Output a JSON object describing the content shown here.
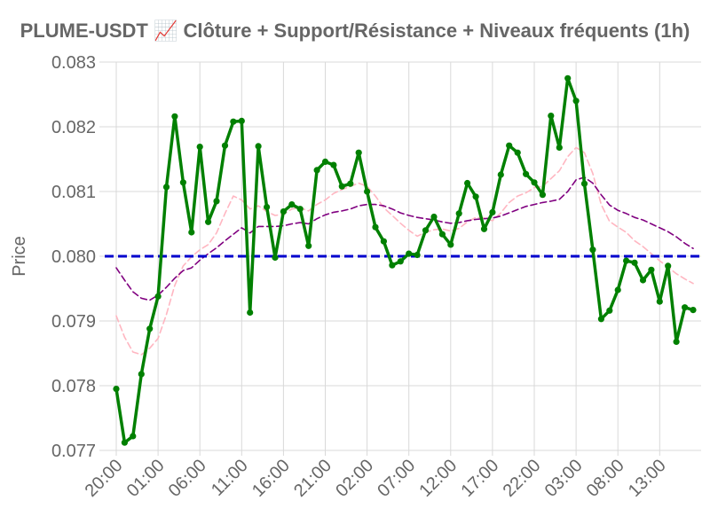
{
  "chart_data": {
    "type": "line",
    "title": "PLUME-USDT 📈 Clôture + Support/Résistance + Niveaux fréquents (1h)",
    "xlabel": "",
    "ylabel": "Price",
    "ylim": [
      0.077,
      0.083
    ],
    "yticks": [
      "0.077",
      "0.078",
      "0.079",
      "0.080",
      "0.081",
      "0.082",
      "0.083"
    ],
    "ytick_values": [
      0.077,
      0.078,
      0.079,
      0.08,
      0.081,
      0.082,
      0.083
    ],
    "xticks": [
      {
        "index": 0,
        "label": "20:00"
      },
      {
        "index": 5,
        "label": "01:00"
      },
      {
        "index": 10,
        "label": "06:00"
      },
      {
        "index": 15,
        "label": "11:00"
      },
      {
        "index": 20,
        "label": "16:00"
      },
      {
        "index": 25,
        "label": "21:00"
      },
      {
        "index": 30,
        "label": "02:00"
      },
      {
        "index": 35,
        "label": "07:00"
      },
      {
        "index": 40,
        "label": "12:00"
      },
      {
        "index": 45,
        "label": "17:00"
      },
      {
        "index": 50,
        "label": "22:00"
      },
      {
        "index": 55,
        "label": "03:00"
      },
      {
        "index": 60,
        "label": "08:00"
      },
      {
        "index": 65,
        "label": "13:00"
      }
    ],
    "grid": true,
    "legend": "none",
    "series": [
      {
        "key": "close",
        "color": "#008000",
        "style": "solid",
        "markers": true,
        "values": [
          0.07795,
          0.07712,
          0.07722,
          0.07818,
          0.07888,
          0.07938,
          0.08107,
          0.08216,
          0.08114,
          0.08037,
          0.08169,
          0.08053,
          0.08085,
          0.08171,
          0.08208,
          0.08209,
          0.07913,
          0.0817,
          0.08076,
          0.07998,
          0.08069,
          0.0808,
          0.08073,
          0.08016,
          0.08133,
          0.08146,
          0.08141,
          0.08108,
          0.08112,
          0.0816,
          0.081,
          0.08045,
          0.08023,
          0.07986,
          0.07992,
          0.08004,
          0.08002,
          0.0804,
          0.08061,
          0.08034,
          0.08018,
          0.08066,
          0.08113,
          0.08092,
          0.08042,
          0.08068,
          0.08126,
          0.08171,
          0.0816,
          0.08127,
          0.08114,
          0.08095,
          0.08217,
          0.08168,
          0.08275,
          0.0824,
          0.08112,
          0.0801,
          0.07903,
          0.07916,
          0.07948,
          0.07993,
          0.0799,
          0.07963,
          0.07979,
          0.0793,
          0.07985,
          0.07868,
          0.07921,
          0.07917
        ]
      },
      {
        "key": "ma-slow",
        "color": "#800080",
        "style": "dashed",
        "markers": false,
        "values": [
          0.07982,
          0.07963,
          0.07945,
          0.07935,
          0.07932,
          0.0794,
          0.07952,
          0.07966,
          0.07978,
          0.07982,
          0.07994,
          0.08004,
          0.08013,
          0.08024,
          0.08034,
          0.08044,
          0.08036,
          0.08046,
          0.08046,
          0.08046,
          0.08047,
          0.0805,
          0.08052,
          0.0805,
          0.08058,
          0.08064,
          0.08068,
          0.0807,
          0.08073,
          0.08078,
          0.0808,
          0.0808,
          0.08078,
          0.08073,
          0.08067,
          0.08063,
          0.0806,
          0.08058,
          0.08056,
          0.08053,
          0.08051,
          0.08052,
          0.08055,
          0.08057,
          0.08058,
          0.08059,
          0.08062,
          0.08067,
          0.08072,
          0.08077,
          0.0808,
          0.08083,
          0.08085,
          0.08088,
          0.081,
          0.08118,
          0.08122,
          0.08113,
          0.08095,
          0.08079,
          0.08071,
          0.08066,
          0.0806,
          0.08056,
          0.0805,
          0.08044,
          0.08038,
          0.0803,
          0.0802,
          0.08012
        ]
      },
      {
        "key": "ma-fast",
        "color": "#ffb6c1",
        "style": "dashed",
        "markers": false,
        "values": [
          0.07908,
          0.07875,
          0.07852,
          0.07848,
          0.07858,
          0.07873,
          0.0791,
          0.07955,
          0.07985,
          0.07999,
          0.0801,
          0.08018,
          0.08036,
          0.08066,
          0.08093,
          0.08087,
          0.08073,
          0.08078,
          0.08069,
          0.08063,
          0.08065,
          0.08073,
          0.08075,
          0.0807,
          0.0808,
          0.08087,
          0.08097,
          0.08103,
          0.08108,
          0.08113,
          0.08108,
          0.08093,
          0.08075,
          0.08063,
          0.08051,
          0.0804,
          0.08031,
          0.08037,
          0.08041,
          0.08042,
          0.08039,
          0.08043,
          0.08053,
          0.0806,
          0.08059,
          0.08055,
          0.08067,
          0.08083,
          0.08093,
          0.08098,
          0.08106,
          0.08108,
          0.0812,
          0.08132,
          0.08154,
          0.08168,
          0.0816,
          0.08128,
          0.0808,
          0.08054,
          0.08045,
          0.08037,
          0.08024,
          0.08015,
          0.08004,
          0.07993,
          0.07983,
          0.07973,
          0.07965,
          0.07958
        ]
      },
      {
        "key": "level",
        "color": "#0000cd",
        "style": "dashed",
        "markers": false,
        "values": [
          0.08,
          0.08
        ]
      }
    ]
  }
}
